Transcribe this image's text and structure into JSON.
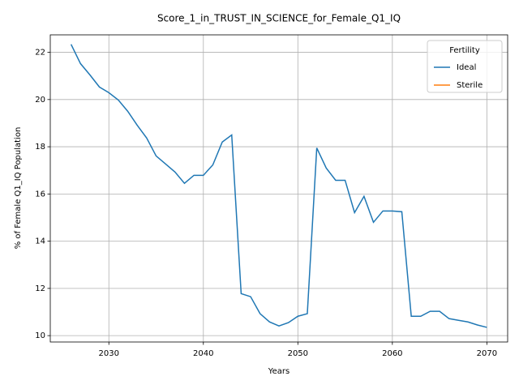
{
  "chart_data": {
    "type": "line",
    "title": "Score_1_in_TRUST_IN_SCIENCE_for_Female_Q1_IQ",
    "x_label": "Years",
    "y_label": "% of Female Q1_IQ Population",
    "x": [
      2026,
      2027,
      2028,
      2029,
      2030,
      2031,
      2032,
      2033,
      2034,
      2035,
      2036,
      2037,
      2038,
      2039,
      2040,
      2041,
      2042,
      2043,
      2044,
      2045,
      2046,
      2047,
      2048,
      2049,
      2050,
      2051,
      2052,
      2053,
      2054,
      2055,
      2056,
      2057,
      2058,
      2059,
      2060,
      2061,
      2062,
      2063,
      2064,
      2065,
      2066,
      2067,
      2068,
      2069,
      2070
    ],
    "series": [
      {
        "name": "Ideal",
        "color": "#1f77b4",
        "values": [
          22.34,
          21.52,
          21.04,
          20.53,
          20.29,
          19.98,
          19.5,
          18.91,
          18.37,
          17.61,
          17.27,
          16.93,
          16.45,
          16.79,
          16.79,
          17.23,
          18.2,
          18.5,
          11.78,
          11.65,
          10.93,
          10.58,
          10.41,
          10.55,
          10.82,
          10.93,
          17.95,
          17.1,
          16.58,
          16.58,
          15.21,
          15.9,
          14.8,
          15.28,
          15.28,
          15.25,
          10.82,
          10.82,
          11.03,
          11.03,
          10.72,
          10.65,
          10.58,
          10.45,
          10.35
        ]
      },
      {
        "name": "Sterile",
        "color": "#ff7f0e",
        "values": [
          null,
          null,
          null,
          null,
          null,
          null,
          null,
          null,
          null,
          null,
          null,
          null,
          null,
          null,
          null,
          null,
          null,
          null,
          null,
          null,
          null,
          null,
          null,
          null,
          null,
          null,
          null,
          null,
          null,
          null,
          null,
          null,
          null,
          null,
          null,
          null,
          null,
          null,
          null,
          null,
          null,
          null,
          null,
          null,
          null
        ]
      }
    ],
    "legend_title": "Fertility",
    "legend_position": "upper right",
    "xlim": [
      2023.8,
      2072.2
    ],
    "xticks": [
      2030,
      2040,
      2050,
      2060,
      2070
    ],
    "ylim": [
      9.73,
      22.74
    ],
    "yticks": [
      10,
      12,
      14,
      16,
      18,
      20,
      22
    ],
    "grid": true
  }
}
